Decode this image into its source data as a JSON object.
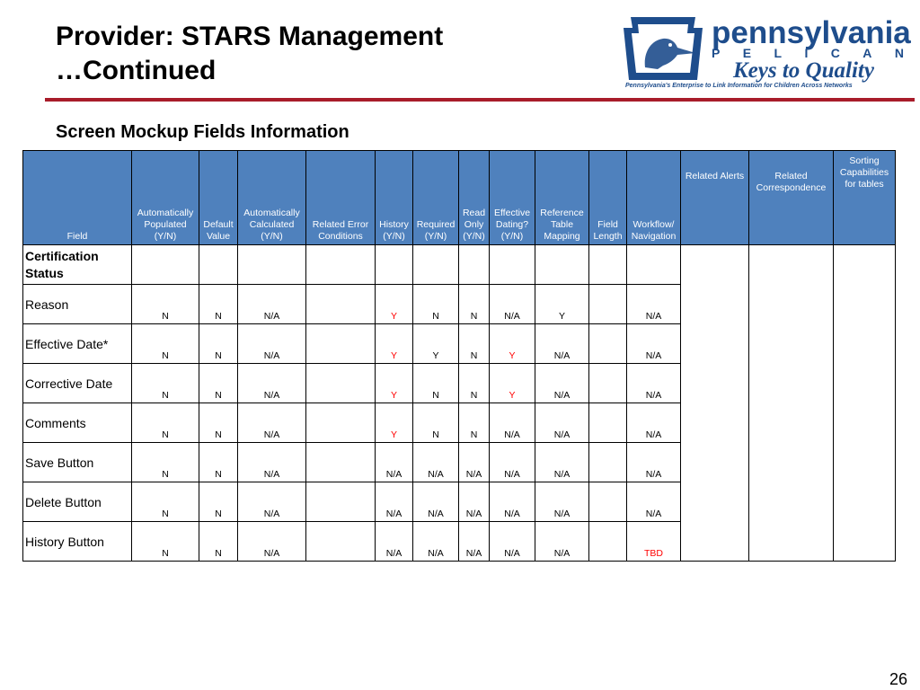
{
  "title_line1": "Provider: STARS Management",
  "title_line2": "…Continued",
  "subtitle": "Screen Mockup Fields Information",
  "logo": {
    "wordmark": "pennsylvania",
    "pelican": [
      "P",
      "E",
      "L",
      "I",
      "C",
      "A",
      "N"
    ],
    "keys": "Keys to Quality",
    "tagline": "Pennsylvania's Enterprise to Link Information for Children Across Networks"
  },
  "table": {
    "headers": {
      "field": "Field",
      "auto_populated": "Automatically Populated (Y/N)",
      "default_value": "Default Value",
      "auto_calculated": "Automatically Calculated (Y/N)",
      "related_error": "Related Error Conditions",
      "history": "History (Y/N)",
      "required": "Required (Y/N)",
      "read_only": "Read Only (Y/N)",
      "effective_dating": "Effective Dating? (Y/N)",
      "reference_table": "Reference Table Mapping",
      "field_length": "Field Length",
      "workflow": "Workflow/ Navigation",
      "related_alerts": "Related Alerts",
      "related_correspondence": "Related Correspondence",
      "sorting": "Sorting Capabilities for tables"
    },
    "section_label": "Certification Status",
    "rows": [
      {
        "field": "Reason",
        "auto_populated": "N",
        "default_value": "N",
        "auto_calculated": "N/A",
        "related_error": "",
        "history": "Y",
        "required": "N",
        "read_only": "N",
        "effective_dating": "N/A",
        "reference_table": "Y",
        "field_length": "",
        "workflow": "N/A"
      },
      {
        "field": "Effective Date*",
        "auto_populated": "N",
        "default_value": "N",
        "auto_calculated": "N/A",
        "related_error": "",
        "history": "Y",
        "required": "Y",
        "read_only": "N",
        "effective_dating": "Y",
        "reference_table": "N/A",
        "field_length": "",
        "workflow": "N/A"
      },
      {
        "field": "Corrective Date",
        "auto_populated": "N",
        "default_value": "N",
        "auto_calculated": "N/A",
        "related_error": "",
        "history": "Y",
        "required": "N",
        "read_only": "N",
        "effective_dating": "Y",
        "reference_table": "N/A",
        "field_length": "",
        "workflow": "N/A"
      },
      {
        "field": "Comments",
        "auto_populated": "N",
        "default_value": "N",
        "auto_calculated": "N/A",
        "related_error": "",
        "history": "Y",
        "required": "N",
        "read_only": "N",
        "effective_dating": "N/A",
        "reference_table": "N/A",
        "field_length": "",
        "workflow": "N/A"
      },
      {
        "field": "Save Button",
        "auto_populated": "N",
        "default_value": "N",
        "auto_calculated": "N/A",
        "related_error": "",
        "history": "N/A",
        "required": "N/A",
        "read_only": "N/A",
        "effective_dating": "N/A",
        "reference_table": "N/A",
        "field_length": "",
        "workflow": "N/A"
      },
      {
        "field": "Delete Button",
        "auto_populated": "N",
        "default_value": "N",
        "auto_calculated": "N/A",
        "related_error": "",
        "history": "N/A",
        "required": "N/A",
        "read_only": "N/A",
        "effective_dating": "N/A",
        "reference_table": "N/A",
        "field_length": "",
        "workflow": "N/A"
      },
      {
        "field": "History Button",
        "auto_populated": "N",
        "default_value": "N",
        "auto_calculated": "N/A",
        "related_error": "",
        "history": "N/A",
        "required": "N/A",
        "read_only": "N/A",
        "effective_dating": "N/A",
        "reference_table": "N/A",
        "field_length": "",
        "workflow": "TBD"
      }
    ]
  },
  "colors": {
    "header_fill": "#4f81bd",
    "rule": "#a81c2a",
    "logo_blue": "#1e4d8c",
    "highlight": "#ff0000"
  },
  "page_number": "26"
}
